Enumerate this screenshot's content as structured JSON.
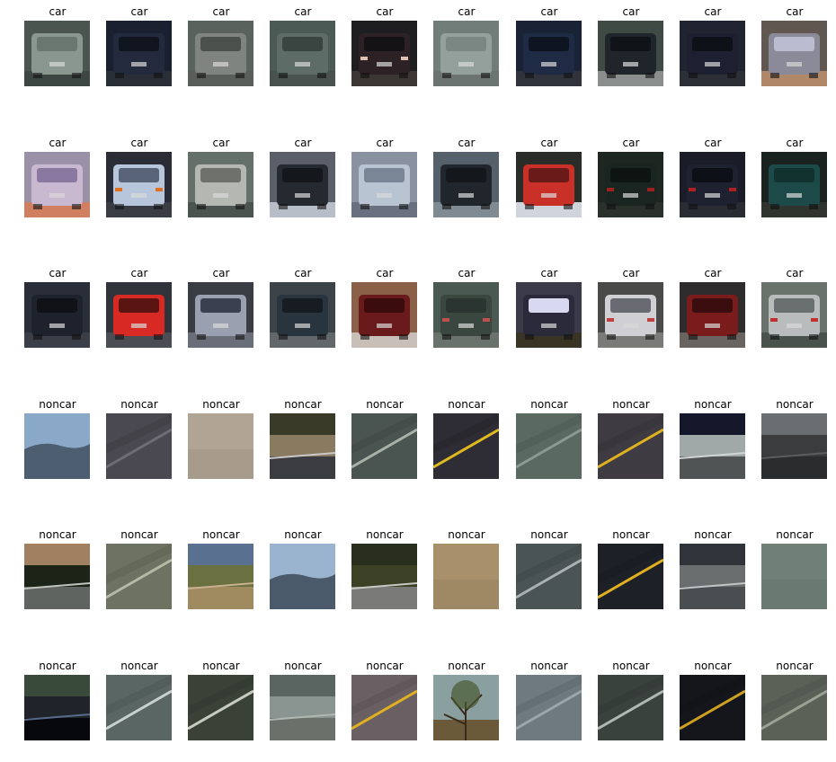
{
  "figure": {
    "rows": [
      {
        "label": "car",
        "images": [
          {
            "kind": "car",
            "bg": "#4a5550",
            "body": "#8a9690",
            "glass": "#6a7670",
            "road": "#3c4642"
          },
          {
            "kind": "car",
            "bg": "#1b2030",
            "body": "#232a3e",
            "glass": "#101520",
            "road": "#2a2e36"
          },
          {
            "kind": "car",
            "bg": "#59625d",
            "body": "#7f8480",
            "glass": "#4a504c",
            "road": "#5a5e5b"
          },
          {
            "kind": "car",
            "bg": "#4c5a55",
            "body": "#5e6c67",
            "glass": "#3a4541",
            "road": "#4a5250"
          },
          {
            "kind": "car",
            "bg": "#1e1d20",
            "body": "#2c2226",
            "glass": "#141214",
            "road": "#3c3635",
            "light": "#e0c0b0"
          },
          {
            "kind": "car",
            "bg": "#707d78",
            "body": "#93a09b",
            "glass": "#7a8782",
            "road": "#6b7470"
          },
          {
            "kind": "car",
            "bg": "#1a2236",
            "body": "#1f2a44",
            "glass": "#0f1422",
            "road": "#30333b"
          },
          {
            "kind": "car",
            "bg": "#3f4a45",
            "body": "#1f252b",
            "glass": "#101418",
            "road": "#8a8f8e"
          },
          {
            "kind": "car",
            "bg": "#1f2430",
            "body": "#1c2030",
            "glass": "#0e1118",
            "road": "#2c2f36"
          },
          {
            "kind": "car",
            "bg": "#605850",
            "body": "#8a8a98",
            "glass": "#bcbcd0",
            "road": "#b08868"
          }
        ]
      },
      {
        "label": "car",
        "images": [
          {
            "kind": "car",
            "bg": "#9a90a8",
            "body": "#c8b8d0",
            "glass": "#8a78a0",
            "road": "#d08060"
          },
          {
            "kind": "car",
            "bg": "#2a2c36",
            "body": "#b8c6dc",
            "glass": "#5a6478",
            "road": "#3a3c44",
            "light": "#e07020"
          },
          {
            "kind": "car",
            "bg": "#65706a",
            "body": "#b5b8b2",
            "glass": "#6e716c",
            "road": "#4c5450"
          },
          {
            "kind": "car",
            "bg": "#5a5f6a",
            "body": "#252a30",
            "glass": "#14181c",
            "road": "#b8bec8"
          },
          {
            "kind": "car",
            "bg": "#8a92a2",
            "body": "#b8c4d2",
            "glass": "#7a8696",
            "road": "#6a7080"
          },
          {
            "kind": "car",
            "bg": "#55606a",
            "body": "#20262c",
            "glass": "#14181c",
            "road": "#808a92"
          },
          {
            "kind": "car",
            "bg": "#2a2c28",
            "body": "#c83028",
            "glass": "#6a1a18",
            "road": "#d0d4dc"
          },
          {
            "kind": "car",
            "bg": "#1e2622",
            "body": "#1a2420",
            "glass": "#0e1412",
            "road": "#2a302c",
            "light": "#a02020"
          },
          {
            "kind": "car",
            "bg": "#1a1d28",
            "body": "#1e2230",
            "glass": "#0e1018",
            "road": "#2a2c34",
            "light": "#b02020"
          },
          {
            "kind": "car",
            "bg": "#1a2220",
            "body": "#1c4a48",
            "glass": "#123230",
            "road": "#30342f"
          }
        ]
      },
      {
        "label": "car",
        "images": [
          {
            "kind": "car",
            "bg": "#2a2e38",
            "body": "#1e222c",
            "glass": "#101218",
            "road": "#3a3e46"
          },
          {
            "kind": "car",
            "bg": "#30343a",
            "body": "#d82a24",
            "glass": "#5a1412",
            "road": "#4a4e54"
          },
          {
            "kind": "car",
            "bg": "#3a3c44",
            "body": "#9aa0b0",
            "glass": "#3a4050",
            "road": "#6a6e78"
          },
          {
            "kind": "car",
            "bg": "#3c444a",
            "body": "#28343e",
            "glass": "#161c22",
            "road": "#62686a"
          },
          {
            "kind": "car",
            "bg": "#8a6048",
            "body": "#6a1a1a",
            "glass": "#3a0c0c",
            "road": "#c8c0b8"
          },
          {
            "kind": "car",
            "bg": "#4a5a52",
            "body": "#3a4640",
            "glass": "#2a3430",
            "road": "#6a726c",
            "light": "#c05050"
          },
          {
            "kind": "car",
            "bg": "#3a3a48",
            "body": "#2a2a3a",
            "glass": "#d8d8f0",
            "road": "#3a3424"
          },
          {
            "kind": "car",
            "bg": "#4a4a48",
            "body": "#d0d0d4",
            "glass": "#6a6a72",
            "road": "#7a7a78",
            "light": "#c04040"
          },
          {
            "kind": "car",
            "bg": "#2e2c2c",
            "body": "#7a1c1c",
            "glass": "#3a0e0e",
            "road": "#6a6460"
          },
          {
            "kind": "car",
            "bg": "#6a726c",
            "body": "#b8bcbc",
            "glass": "#6a7070",
            "road": "#4a524e",
            "light": "#c03030"
          }
        ]
      },
      {
        "label": "noncar",
        "images": [
          {
            "kind": "hill",
            "sky": "#8aa8c8",
            "land": "#4c5e70"
          },
          {
            "kind": "road",
            "base": "#4a4850",
            "line": "#6e6c74"
          },
          {
            "kind": "flat",
            "base": "#b0a494"
          },
          {
            "kind": "scene",
            "top": "#3a3a28",
            "mid": "#8a7a60",
            "base": "#3a3c40",
            "line": "#c8c8c8"
          },
          {
            "kind": "road",
            "base": "#4a5450",
            "line": "#a8b0a8"
          },
          {
            "kind": "road",
            "base": "#2e2c34",
            "line": "#e0b820"
          },
          {
            "kind": "road",
            "base": "#5a6a62",
            "line": "#8a9a92"
          },
          {
            "kind": "road",
            "base": "#3e3c42",
            "line": "#e0b020"
          },
          {
            "kind": "scene",
            "top": "#14182a",
            "mid": "#a0a8a8",
            "base": "#505454",
            "line": "#d0d4d4"
          },
          {
            "kind": "scene",
            "top": "#6a6e70",
            "mid": "#3a3c3e",
            "base": "#2a2c2e",
            "line": "#5a5c5e"
          }
        ]
      },
      {
        "label": "noncar",
        "images": [
          {
            "kind": "scene",
            "top": "#a08060",
            "mid": "#1c2418",
            "base": "#606460",
            "line": "#c0c4c0"
          },
          {
            "kind": "road",
            "base": "#6e7262",
            "line": "#b4b8a4"
          },
          {
            "kind": "scene",
            "top": "#5a7090",
            "mid": "#6a7040",
            "base": "#a08a60",
            "line": "#c8b090"
          },
          {
            "kind": "hill",
            "sky": "#9ab4d0",
            "land": "#4a5a6a"
          },
          {
            "kind": "scene",
            "top": "#2a2e1c",
            "mid": "#3c4024",
            "base": "#7a7a78",
            "line": "#c8c8c4"
          },
          {
            "kind": "flat",
            "base": "#a8906a"
          },
          {
            "kind": "road",
            "base": "#4a5454",
            "line": "#a8b0b0"
          },
          {
            "kind": "road",
            "base": "#1e2028",
            "line": "#e0b020"
          },
          {
            "kind": "scene",
            "top": "#30343a",
            "mid": "#6a6e6e",
            "base": "#4a4e50",
            "line": "#c0c4c4"
          },
          {
            "kind": "flat",
            "base": "#708078"
          }
        ]
      },
      {
        "label": "noncar",
        "images": [
          {
            "kind": "scene",
            "top": "#3a4a3a",
            "mid": "#20242a",
            "base": "#06080c",
            "line": "#5a6a8a"
          },
          {
            "kind": "road",
            "base": "#5a6664",
            "line": "#c8d0d0"
          },
          {
            "kind": "road",
            "base": "#3a4238",
            "line": "#c8ccc0"
          },
          {
            "kind": "scene",
            "top": "#5a6460",
            "mid": "#8a9490",
            "base": "#6a706a",
            "line": "#b0b8b4"
          },
          {
            "kind": "road",
            "base": "#6a6064",
            "line": "#e0b020"
          },
          {
            "kind": "tree",
            "sky": "#8aa0a0",
            "land": "#6a5a3a"
          },
          {
            "kind": "road",
            "base": "#6e7a80",
            "line": "#9aa6aa"
          },
          {
            "kind": "road",
            "base": "#3a423e",
            "line": "#b0b8b4"
          },
          {
            "kind": "road",
            "base": "#14161c",
            "line": "#d0a020"
          },
          {
            "kind": "road",
            "base": "#5a6258",
            "line": "#9aa294"
          }
        ]
      }
    ]
  }
}
